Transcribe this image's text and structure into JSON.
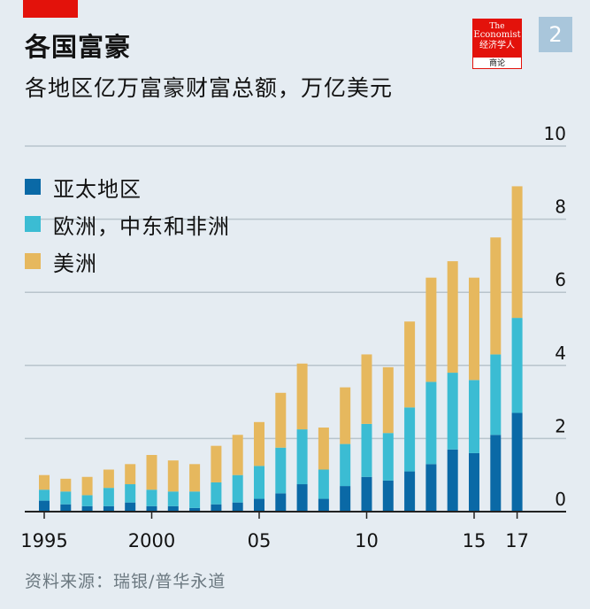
{
  "header": {
    "title": "各国富豪",
    "subtitle": "各地区亿万富豪财富总额，万亿美元",
    "chart_number": "2"
  },
  "logo": {
    "line1": "The",
    "line2": "Economist",
    "line3": "经济学人",
    "line4": "商论"
  },
  "source": "资料来源：瑞银/普华永道",
  "colors": {
    "asia_pacific": "#0a69a6",
    "emea": "#3bbcd3",
    "americas": "#e6b85e",
    "grid": "#b8c4cc",
    "axis": "#222222"
  },
  "chart_data": {
    "type": "bar",
    "stacked": true,
    "title": "各国富豪",
    "subtitle": "各地区亿万富豪财富总额，万亿美元",
    "ylim": [
      0,
      10
    ],
    "y_ticks": [
      0,
      2,
      4,
      6,
      8,
      10
    ],
    "y_tick_labels": [
      "0",
      "2",
      "4",
      "6",
      "8",
      "10"
    ],
    "x_tick_labels": [
      {
        "label": "1995",
        "index": 0
      },
      {
        "label": "2000",
        "index": 5
      },
      {
        "label": "05",
        "index": 10
      },
      {
        "label": "10",
        "index": 15
      },
      {
        "label": "15",
        "index": 20
      },
      {
        "label": "17",
        "index": 22
      }
    ],
    "categories": [
      "1995",
      "1996",
      "1997",
      "1998",
      "1999",
      "2000",
      "2001",
      "2002",
      "2003",
      "2004",
      "2005",
      "2006",
      "2007",
      "2008",
      "2009",
      "2010",
      "2011",
      "2012",
      "2013",
      "2014",
      "2015",
      "2016",
      "2017"
    ],
    "series": [
      {
        "name": "亚太地区",
        "key": "asia_pacific",
        "values": [
          0.3,
          0.2,
          0.15,
          0.15,
          0.25,
          0.15,
          0.15,
          0.1,
          0.2,
          0.25,
          0.35,
          0.5,
          0.75,
          0.35,
          0.7,
          0.95,
          0.85,
          1.1,
          1.3,
          1.7,
          1.6,
          2.1,
          2.7
        ]
      },
      {
        "name": "欧洲，中东和非洲",
        "key": "emea",
        "values": [
          0.3,
          0.35,
          0.3,
          0.5,
          0.5,
          0.45,
          0.4,
          0.45,
          0.6,
          0.75,
          0.9,
          1.25,
          1.5,
          0.8,
          1.15,
          1.45,
          1.3,
          1.75,
          2.25,
          2.1,
          2.0,
          2.2,
          2.6
        ]
      },
      {
        "name": "美洲",
        "key": "americas",
        "values": [
          0.4,
          0.35,
          0.5,
          0.5,
          0.55,
          0.95,
          0.85,
          0.75,
          1.0,
          1.1,
          1.2,
          1.5,
          1.8,
          1.15,
          1.55,
          1.9,
          1.8,
          2.35,
          2.85,
          3.05,
          2.8,
          3.2,
          3.6
        ]
      }
    ],
    "legend": [
      "亚太地区",
      "欧洲，中东和非洲",
      "美洲"
    ],
    "legend_position": "top-left"
  }
}
